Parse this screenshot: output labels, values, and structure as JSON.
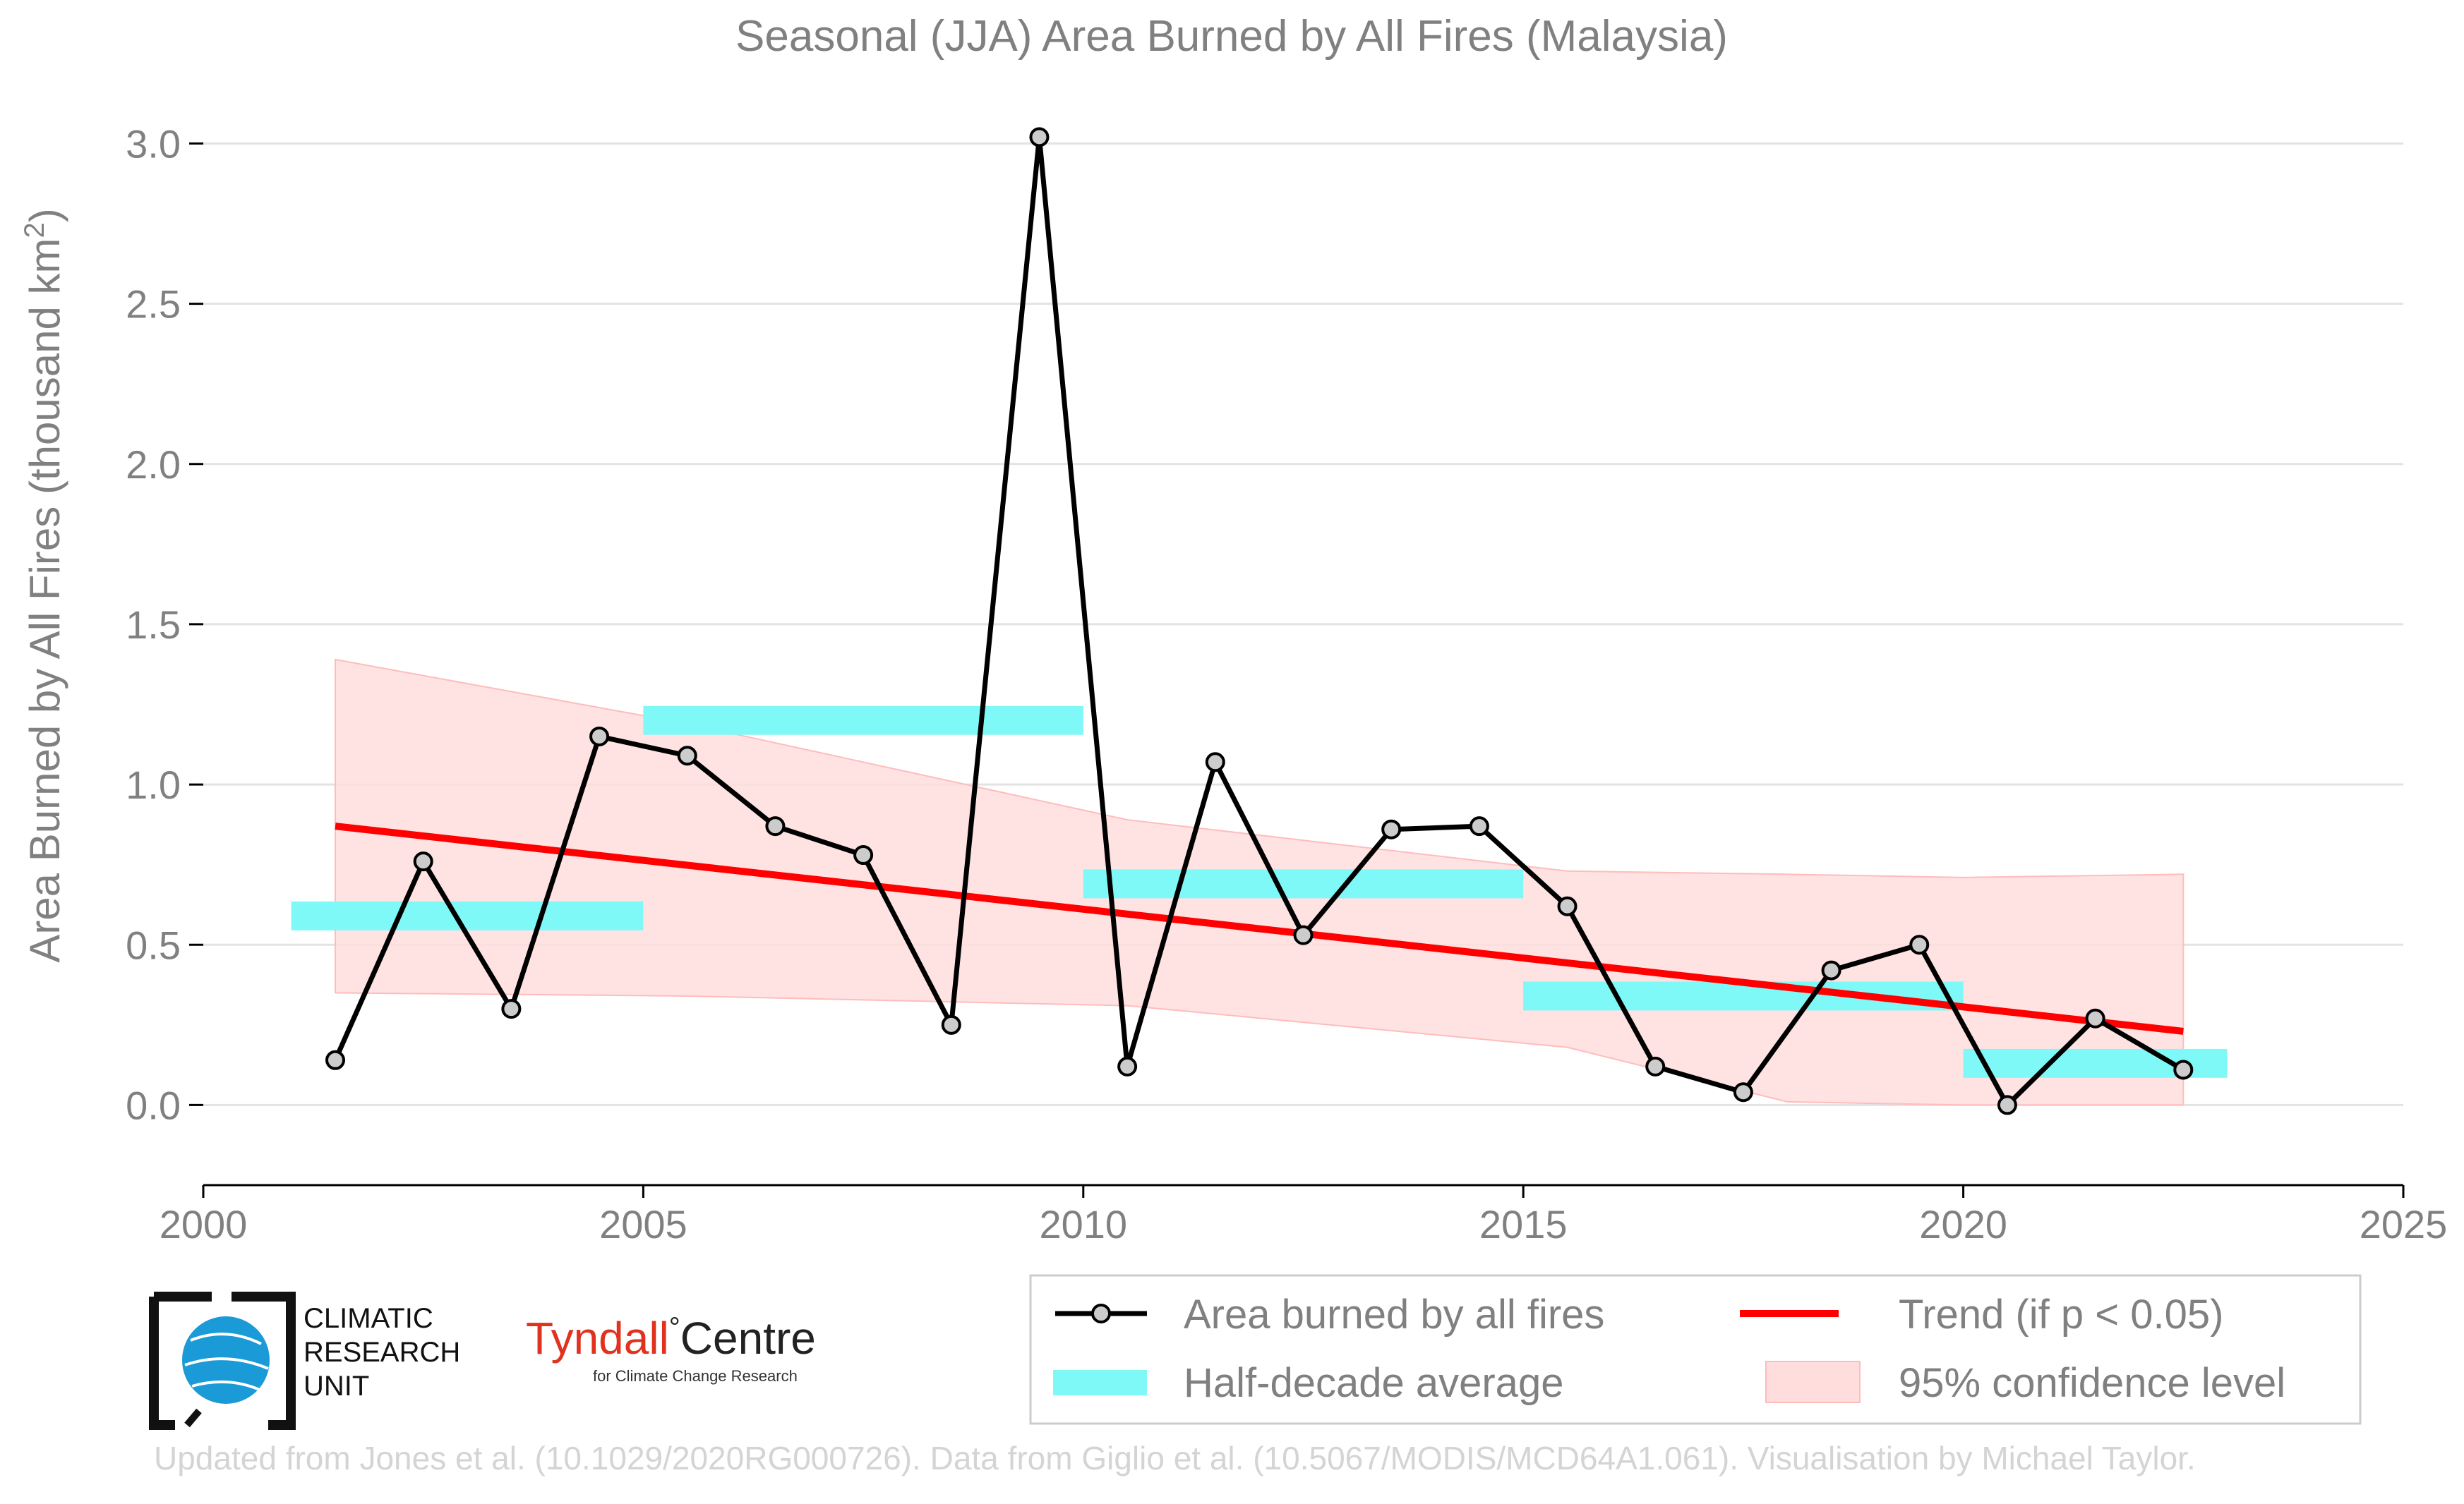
{
  "chart_data": {
    "type": "line",
    "title": "Seasonal (JJA) Area Burned by All Fires (Malaysia)",
    "ylabel": "Area Burned by All Fires (thousand km",
    "ylabel_sup": "2",
    "ylabel_close": ")",
    "xlabel": "",
    "xlim": [
      2000,
      2025
    ],
    "ylim": [
      -0.25,
      3.1
    ],
    "xticks": [
      2000,
      2005,
      2010,
      2015,
      2020,
      2025
    ],
    "yticks": [
      0.0,
      0.5,
      1.0,
      1.5,
      2.0,
      2.5,
      3.0
    ],
    "ytick_labels": [
      "0.0",
      "0.5",
      "1.0",
      "1.5",
      "2.0",
      "2.5",
      "3.0"
    ],
    "grid": "horizontal",
    "series": [
      {
        "name": "Area burned by all fires",
        "color": "#000000",
        "x": [
          2001.5,
          2002.5,
          2003.5,
          2004.5,
          2005.5,
          2006.5,
          2007.5,
          2008.5,
          2009.5,
          2010.5,
          2011.5,
          2012.5,
          2013.5,
          2014.5,
          2015.5,
          2016.5,
          2017.5,
          2018.5,
          2019.5,
          2020.5,
          2021.5,
          2022.5
        ],
        "y": [
          0.14,
          0.76,
          0.3,
          1.15,
          1.09,
          0.87,
          0.78,
          0.25,
          3.02,
          0.12,
          1.07,
          0.53,
          0.86,
          0.87,
          0.62,
          0.12,
          0.04,
          0.42,
          0.5,
          0.0,
          0.27,
          0.11
        ]
      },
      {
        "name": "Half-decade average",
        "color": "#7ff8f8",
        "segments": [
          {
            "x0": 2001.0,
            "x1": 2005.0,
            "y": 0.59
          },
          {
            "x0": 2005.0,
            "x1": 2010.0,
            "y": 1.2
          },
          {
            "x0": 2010.0,
            "x1": 2015.0,
            "y": 0.69
          },
          {
            "x0": 2015.0,
            "x1": 2020.0,
            "y": 0.34
          },
          {
            "x0": 2020.0,
            "x1": 2023.0,
            "y": 0.13
          }
        ]
      },
      {
        "name": "Trend (if p < 0.05)",
        "color": "#ff0000",
        "x": [
          2001.5,
          2022.5
        ],
        "y": [
          0.87,
          0.23
        ]
      },
      {
        "name": "95% confidence level",
        "color": "#ffdddd",
        "x": [
          2001.5,
          2005.5,
          2010.5,
          2015.5,
          2018.0,
          2020.0,
          2022.5
        ],
        "upper": [
          1.39,
          1.19,
          0.89,
          0.73,
          0.72,
          0.71,
          0.72
        ],
        "lower": [
          0.35,
          0.34,
          0.31,
          0.18,
          0.01,
          0.0,
          0.0
        ]
      }
    ],
    "legend": {
      "placement": "bottom-right",
      "entries": [
        "Area burned by all fires",
        "Trend (if p < 0.05)",
        "Half-decade average",
        "95% confidence level"
      ]
    }
  },
  "logos": {
    "cru_lines": [
      "CLIMATIC",
      "RESEARCH",
      "UNIT"
    ],
    "tyndall_main_a": "Tyndall",
    "tyndall_degree": "°",
    "tyndall_main_b": "Centre",
    "tyndall_sub": "for Climate Change Research"
  },
  "footer": "Updated from Jones et al. (10.1029/2020RG000726). Data from Giglio et al. (10.5067/MODIS/MCD64A1.061). Visualisation by Michael Taylor."
}
